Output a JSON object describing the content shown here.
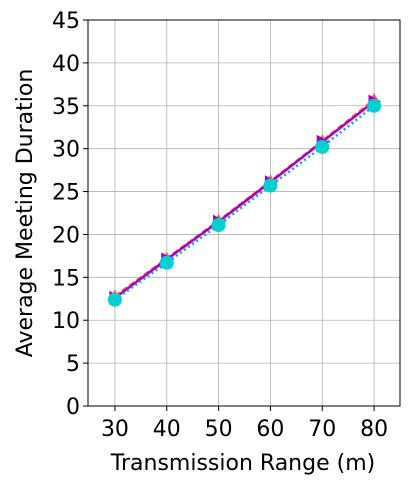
{
  "chart_data": {
    "type": "line",
    "x_label": "Transmission Range (m)",
    "y_label": "Average Meeting Duration",
    "x": [
      30,
      40,
      50,
      60,
      70,
      80
    ],
    "series": [
      {
        "color": "#ff6040",
        "marker": "triangle-up",
        "dash": "6,3",
        "values": [
          12.8,
          17.2,
          21.6,
          26.2,
          30.9,
          35.7
        ]
      },
      {
        "color": "#a000c8",
        "marker": "triangle-right",
        "dash": "",
        "values": [
          12.6,
          17.1,
          21.5,
          26.1,
          30.8,
          35.5
        ]
      },
      {
        "color": "#1e90ff",
        "marker": "circle",
        "marker_color": "#00d0d0",
        "dash": "2,3",
        "values": [
          12.4,
          16.7,
          21.1,
          25.7,
          30.2,
          35.0
        ]
      }
    ],
    "xlim": [
      24.8,
      85
    ],
    "ylim": [
      0,
      45
    ],
    "xticks": [
      30,
      40,
      50,
      60,
      70,
      80
    ],
    "yticks": [
      0,
      5,
      10,
      15,
      20,
      25,
      30,
      35,
      40,
      45
    ],
    "grid": true
  }
}
